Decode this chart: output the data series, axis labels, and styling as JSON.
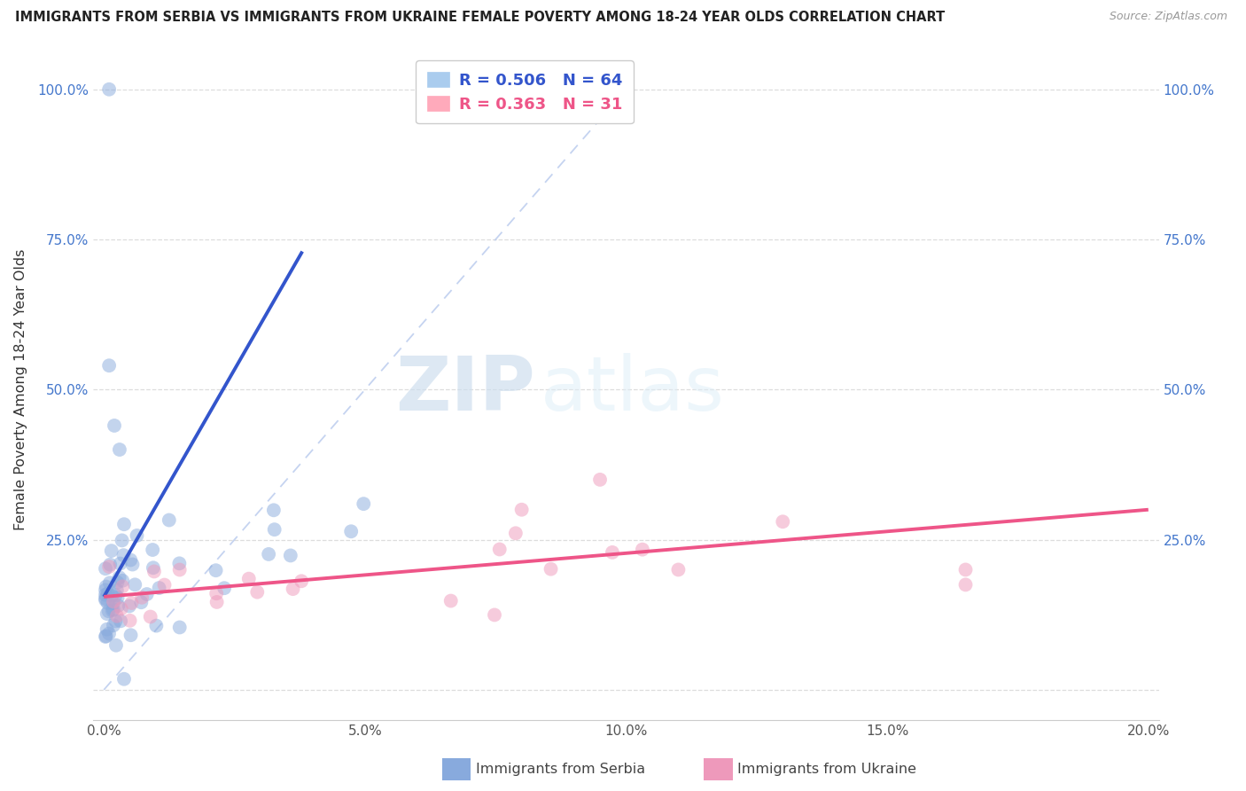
{
  "title": "IMMIGRANTS FROM SERBIA VS IMMIGRANTS FROM UKRAINE FEMALE POVERTY AMONG 18-24 YEAR OLDS CORRELATION CHART",
  "source": "Source: ZipAtlas.com",
  "ylabel": "Female Poverty Among 18-24 Year Olds",
  "legend_serbia": "Immigrants from Serbia",
  "legend_ukraine": "Immigrants from Ukraine",
  "R_serbia": 0.506,
  "N_serbia": 64,
  "R_ukraine": 0.363,
  "N_ukraine": 31,
  "xlim": [
    -0.002,
    0.202
  ],
  "ylim": [
    -0.05,
    1.05
  ],
  "xtick_vals": [
    0.0,
    0.05,
    0.1,
    0.15,
    0.2
  ],
  "xtick_labels": [
    "0.0%",
    "5.0%",
    "10.0%",
    "15.0%",
    "20.0%"
  ],
  "ytick_vals": [
    0.0,
    0.25,
    0.5,
    0.75,
    1.0
  ],
  "ytick_labels_left": [
    "",
    "25.0%",
    "50.0%",
    "75.0%",
    "100.0%"
  ],
  "ytick_labels_right": [
    "",
    "25.0%",
    "50.0%",
    "75.0%",
    "100.0%"
  ],
  "color_serbia": "#88AADD",
  "color_ukraine": "#EE99BB",
  "color_serbia_line": "#3355CC",
  "color_ukraine_line": "#EE5588",
  "color_diag": "#BBCCEE",
  "background": "#FFFFFF",
  "watermark_zip": "ZIP",
  "watermark_atlas": "atlas",
  "serbia_line_x0": 0.0,
  "serbia_line_y0": 0.155,
  "serbia_line_x1": 0.038,
  "serbia_line_y1": 0.73,
  "ukraine_line_x0": 0.0,
  "ukraine_line_y0": 0.155,
  "ukraine_line_x1": 0.2,
  "ukraine_line_y1": 0.3,
  "diag_line_x0": 0.0,
  "diag_line_y0": 0.0,
  "diag_line_x1": 0.1,
  "diag_line_y1": 1.0
}
